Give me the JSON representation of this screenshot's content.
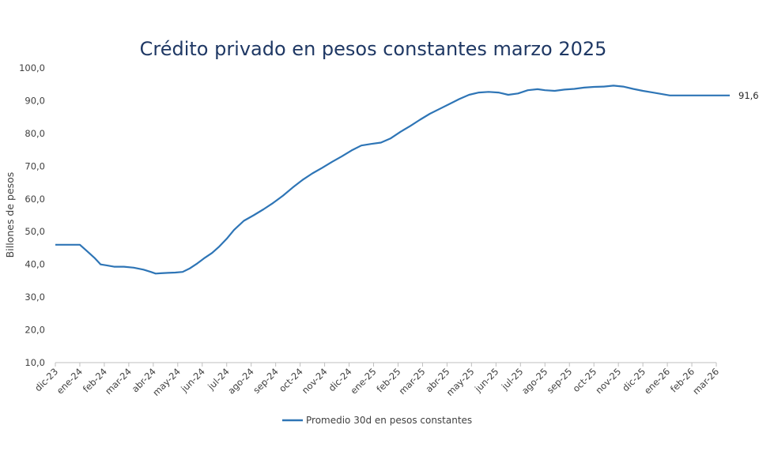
{
  "chart_data": {
    "type": "line",
    "title": "Crédito privado en pesos constantes marzo 2025",
    "xlabel": "",
    "ylabel": "Billones de pesos",
    "ylim": [
      10,
      100
    ],
    "y_ticks": [
      "10,0",
      "20,0",
      "30,0",
      "40,0",
      "50,0",
      "60,0",
      "70,0",
      "80,0",
      "90,0",
      "100,0"
    ],
    "y_tick_values": [
      10,
      20,
      30,
      40,
      50,
      60,
      70,
      80,
      90,
      100
    ],
    "grid": false,
    "legend_position": "bottom",
    "categories": [
      "dic-23",
      "ene-24",
      "feb-24",
      "mar-24",
      "abr-24",
      "may-24",
      "jun-24",
      "jul-24",
      "ago-24",
      "sep-24",
      "oct-24",
      "nov-24",
      "dic-24",
      "ene-25",
      "feb-25",
      "mar-25",
      "abr-25",
      "may-25",
      "jun-25",
      "jul-25",
      "ago-25",
      "sep-25",
      "oct-25",
      "nov-25",
      "dic-25",
      "ene-26",
      "feb-26",
      "mar-26"
    ],
    "series": [
      {
        "name": "Promedio 30d en pesos constantes",
        "color": "#2e75b6",
        "x": [
          0.0,
          1.0,
          1.3,
          1.6,
          1.85,
          2.1,
          2.4,
          2.8,
          3.2,
          3.6,
          3.9,
          4.1,
          4.3,
          4.6,
          4.9,
          5.2,
          5.5,
          5.8,
          6.1,
          6.4,
          6.7,
          7.0,
          7.3,
          7.7,
          8.1,
          8.5,
          8.9,
          9.3,
          9.7,
          10.1,
          10.5,
          10.9,
          11.3,
          11.7,
          12.1,
          12.5,
          12.9,
          13.3,
          13.7,
          14.1,
          14.5,
          14.9,
          15.3,
          15.7,
          16.1,
          16.5,
          16.9,
          17.3,
          17.7,
          18.1,
          18.5,
          18.9,
          19.3,
          19.7,
          20.0,
          20.4,
          20.8,
          21.2,
          21.6,
          22.0,
          22.4,
          22.8,
          23.2,
          23.6,
          24.0,
          24.4,
          24.8,
          25.1,
          25.3,
          25.6,
          26.0,
          26.4,
          26.8,
          27.2,
          27.55
        ],
        "values": [
          46.0,
          46.0,
          44.0,
          42.0,
          40.0,
          39.7,
          39.3,
          39.3,
          39.0,
          38.4,
          37.7,
          37.2,
          37.3,
          37.4,
          37.5,
          37.7,
          38.8,
          40.3,
          42.0,
          43.5,
          45.5,
          47.8,
          50.5,
          53.3,
          55.0,
          56.8,
          58.8,
          61.0,
          63.5,
          65.8,
          67.8,
          69.5,
          71.3,
          73.0,
          74.8,
          76.3,
          76.8,
          77.2,
          78.5,
          80.5,
          82.3,
          84.2,
          86.0,
          87.5,
          89.0,
          90.5,
          91.8,
          92.5,
          92.7,
          92.5,
          91.8,
          92.2,
          93.2,
          93.5,
          93.2,
          93.0,
          93.4,
          93.6,
          94.0,
          94.2,
          94.3,
          94.6,
          94.3,
          93.6,
          93.0,
          92.5,
          92.0,
          91.6,
          91.6,
          91.6,
          91.6,
          91.6,
          91.6,
          91.6,
          91.6
        ]
      }
    ],
    "end_label": "91,6"
  }
}
